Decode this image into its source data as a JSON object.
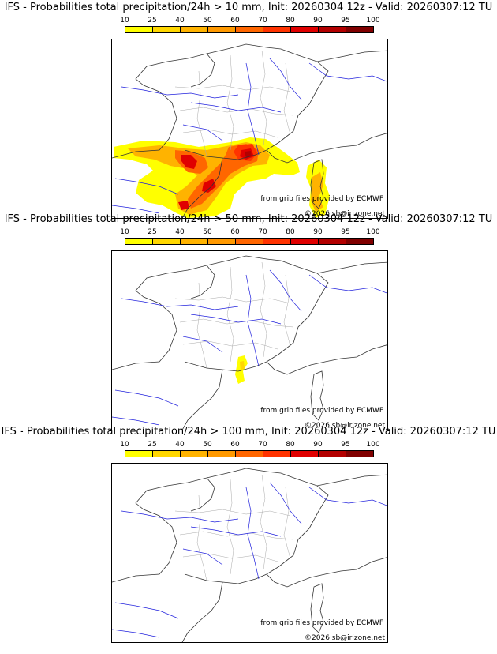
{
  "colors": {
    "scale": [
      "#ffff00",
      "#ffd700",
      "#ffb300",
      "#ff9900",
      "#ff6600",
      "#ff3300",
      "#e00000",
      "#b30000",
      "#800000",
      "#550000"
    ],
    "border": "#333333",
    "region": "#aaaaaa",
    "river": "#2222dd"
  },
  "colorbar_levels": [
    "10",
    "25",
    "40",
    "50",
    "60",
    "70",
    "80",
    "90",
    "95",
    "100"
  ],
  "panels": [
    {
      "title": "IFS - Probabilities total precipitation/24h > 10 mm, Init: 20260304 12z - Valid: 20260307:12 TU",
      "credit_source": "from grib files provided by ECMWF",
      "credit_copyright": "©2026 sb@irizone.net"
    },
    {
      "title": "IFS - Probabilities total precipitation/24h > 50 mm, Init: 20260304 12z - Valid: 20260307:12 TU",
      "credit_source": "from grib files provided by ECMWF",
      "credit_copyright": "©2026 sb@irizone.net"
    },
    {
      "title": "IFS - Probabilities total precipitation/24h > 100 mm, Init: 20260304 12z - Valid: 20260307:12 TU",
      "credit_source": "from grib files provided by ECMWF",
      "credit_copyright": "©2026 sb@irizone.net"
    }
  ]
}
